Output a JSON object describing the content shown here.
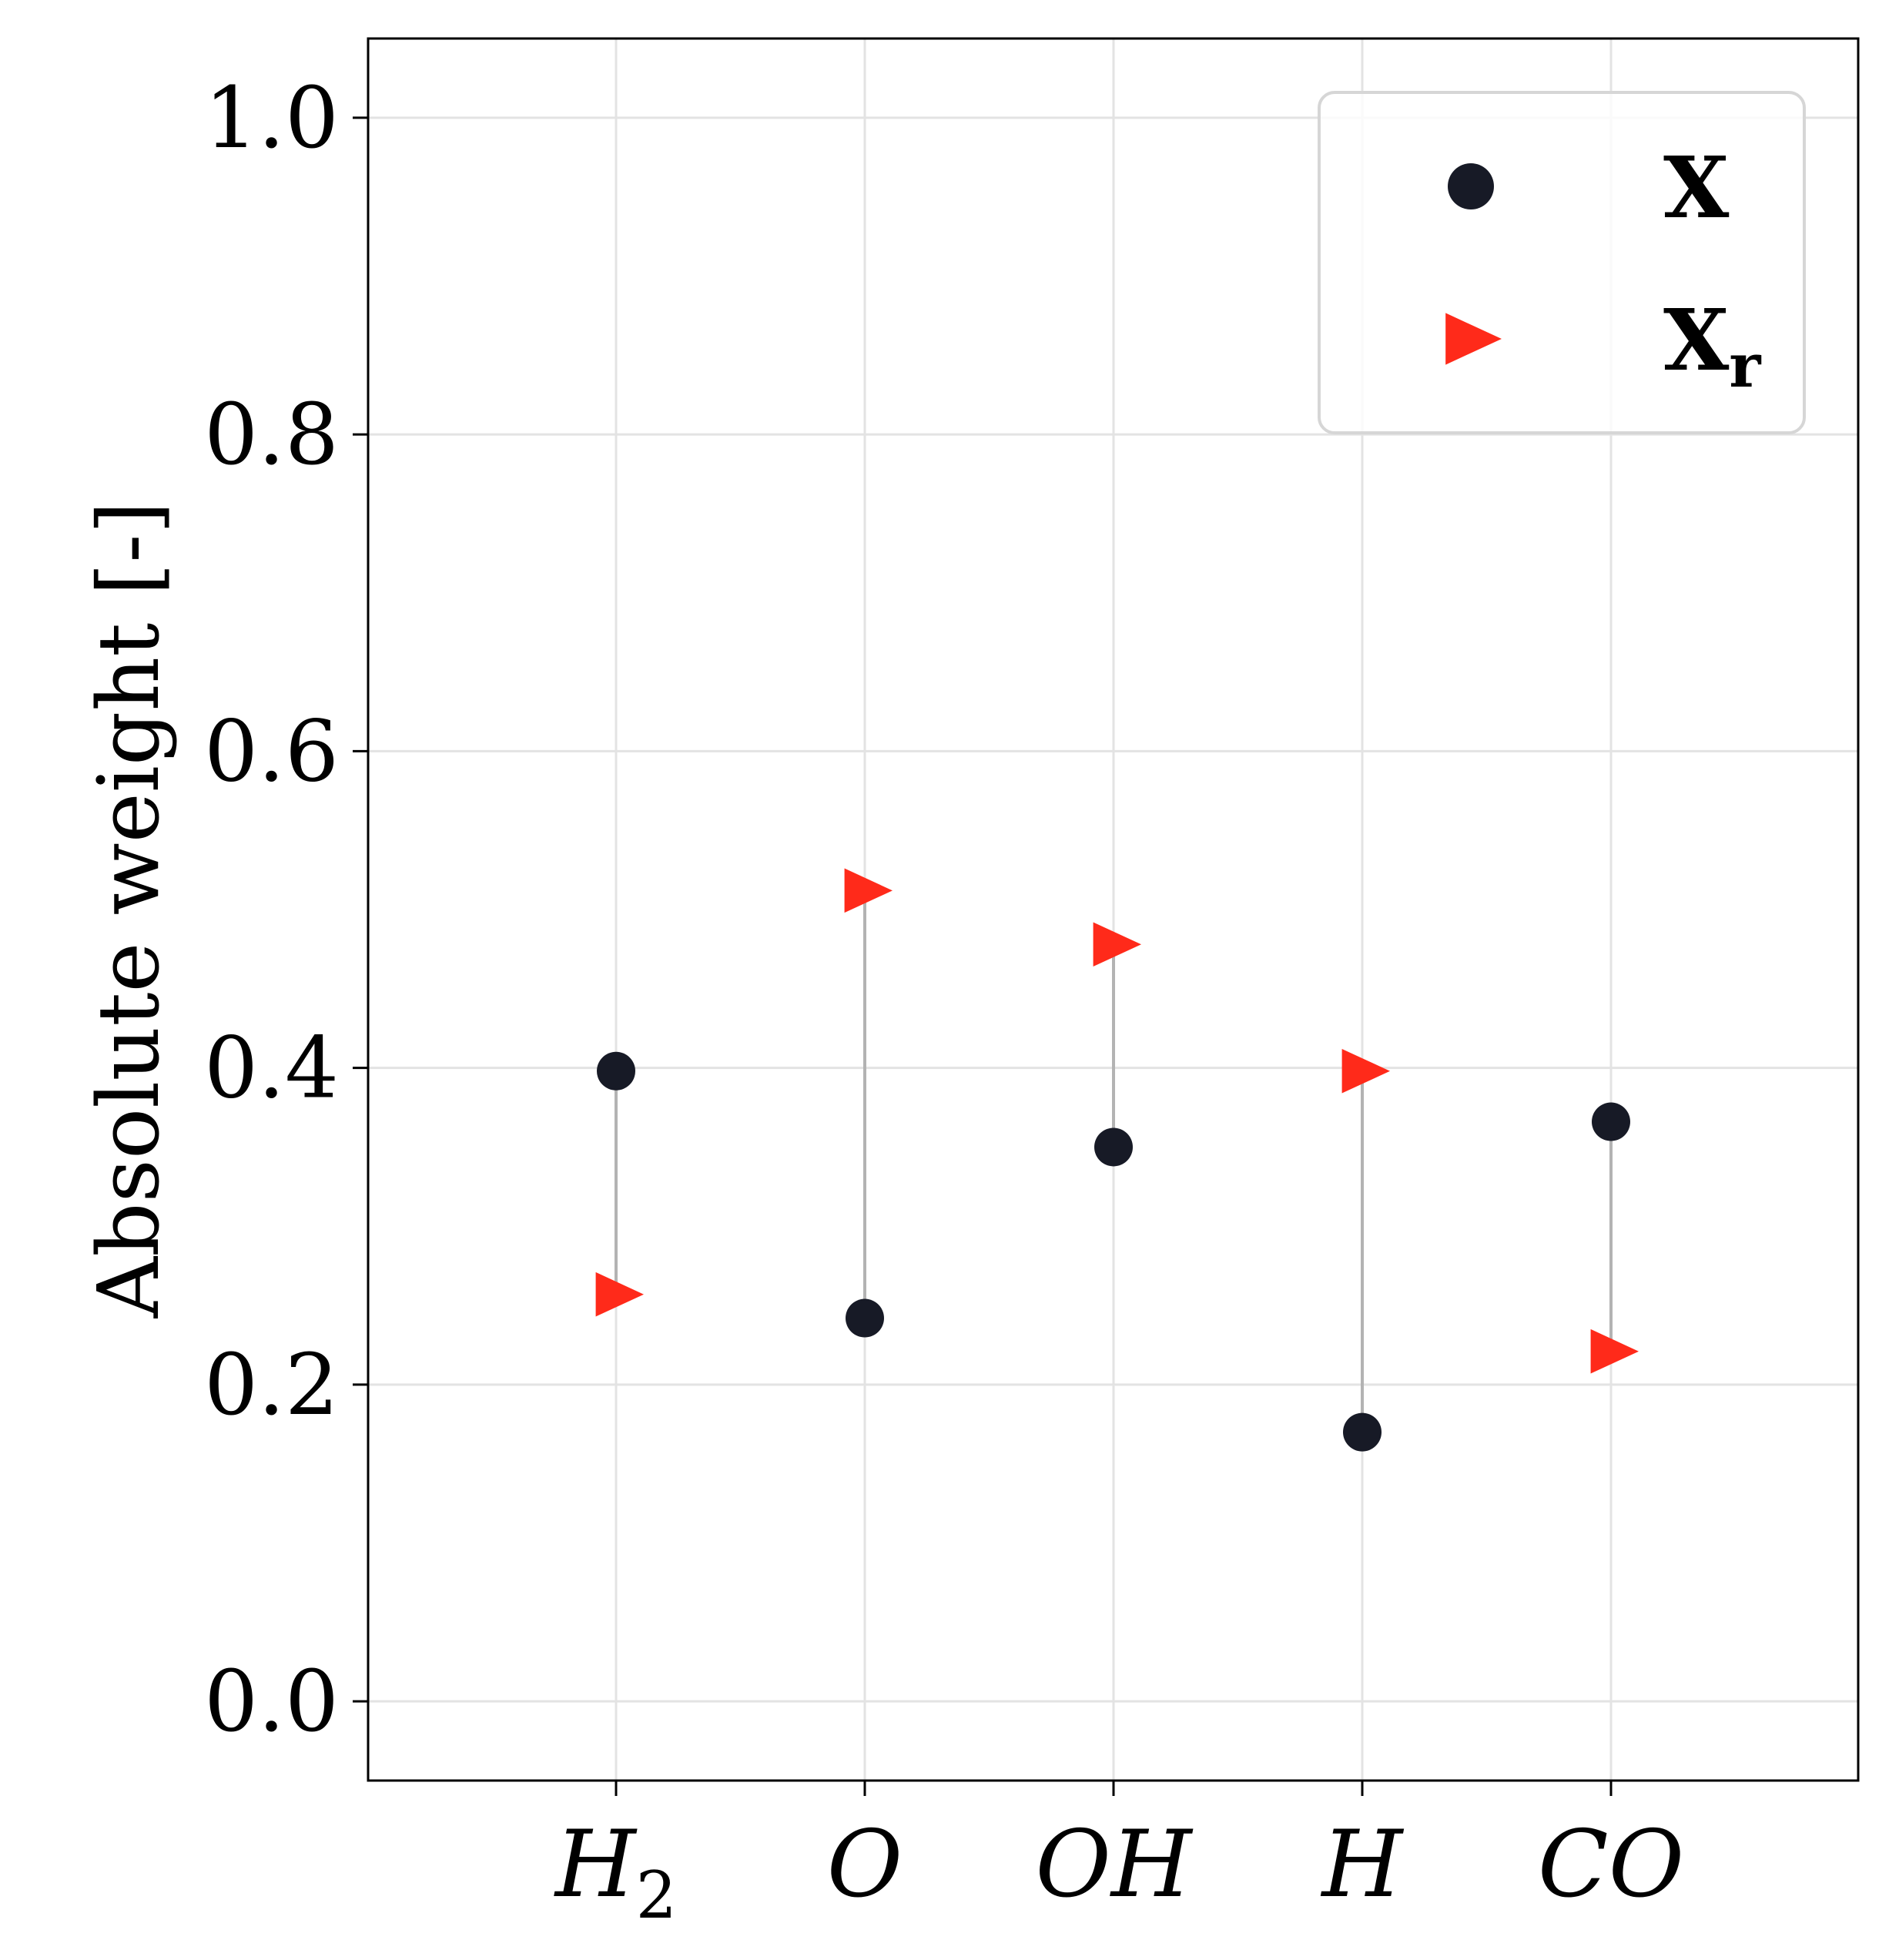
{
  "chart_data": {
    "type": "scatter",
    "ylabel": "Absolute weight [-]",
    "xlabel": "",
    "title": "",
    "ylim": [
      -0.05,
      1.05
    ],
    "yticks": [
      "0.0",
      "0.2",
      "0.4",
      "0.6",
      "0.8",
      "1.0"
    ],
    "grid": true,
    "legend_position": "top-right",
    "categories": [
      {
        "main": "H",
        "sub": "2"
      },
      {
        "main": "O",
        "sub": ""
      },
      {
        "main": "OH",
        "sub": ""
      },
      {
        "main": "H",
        "sub": ""
      },
      {
        "main": "CO",
        "sub": ""
      }
    ],
    "series": [
      {
        "name": "X",
        "sub": "",
        "marker": "circle",
        "color": "#171a26",
        "values": [
          0.398,
          0.242,
          0.35,
          0.17,
          0.366
        ]
      },
      {
        "name": "X",
        "sub": "r",
        "marker": "triangle-right",
        "color": "#ff2a1a",
        "values": [
          0.257,
          0.512,
          0.478,
          0.398,
          0.221
        ]
      }
    ],
    "connector_color": "#b3b3b3"
  }
}
